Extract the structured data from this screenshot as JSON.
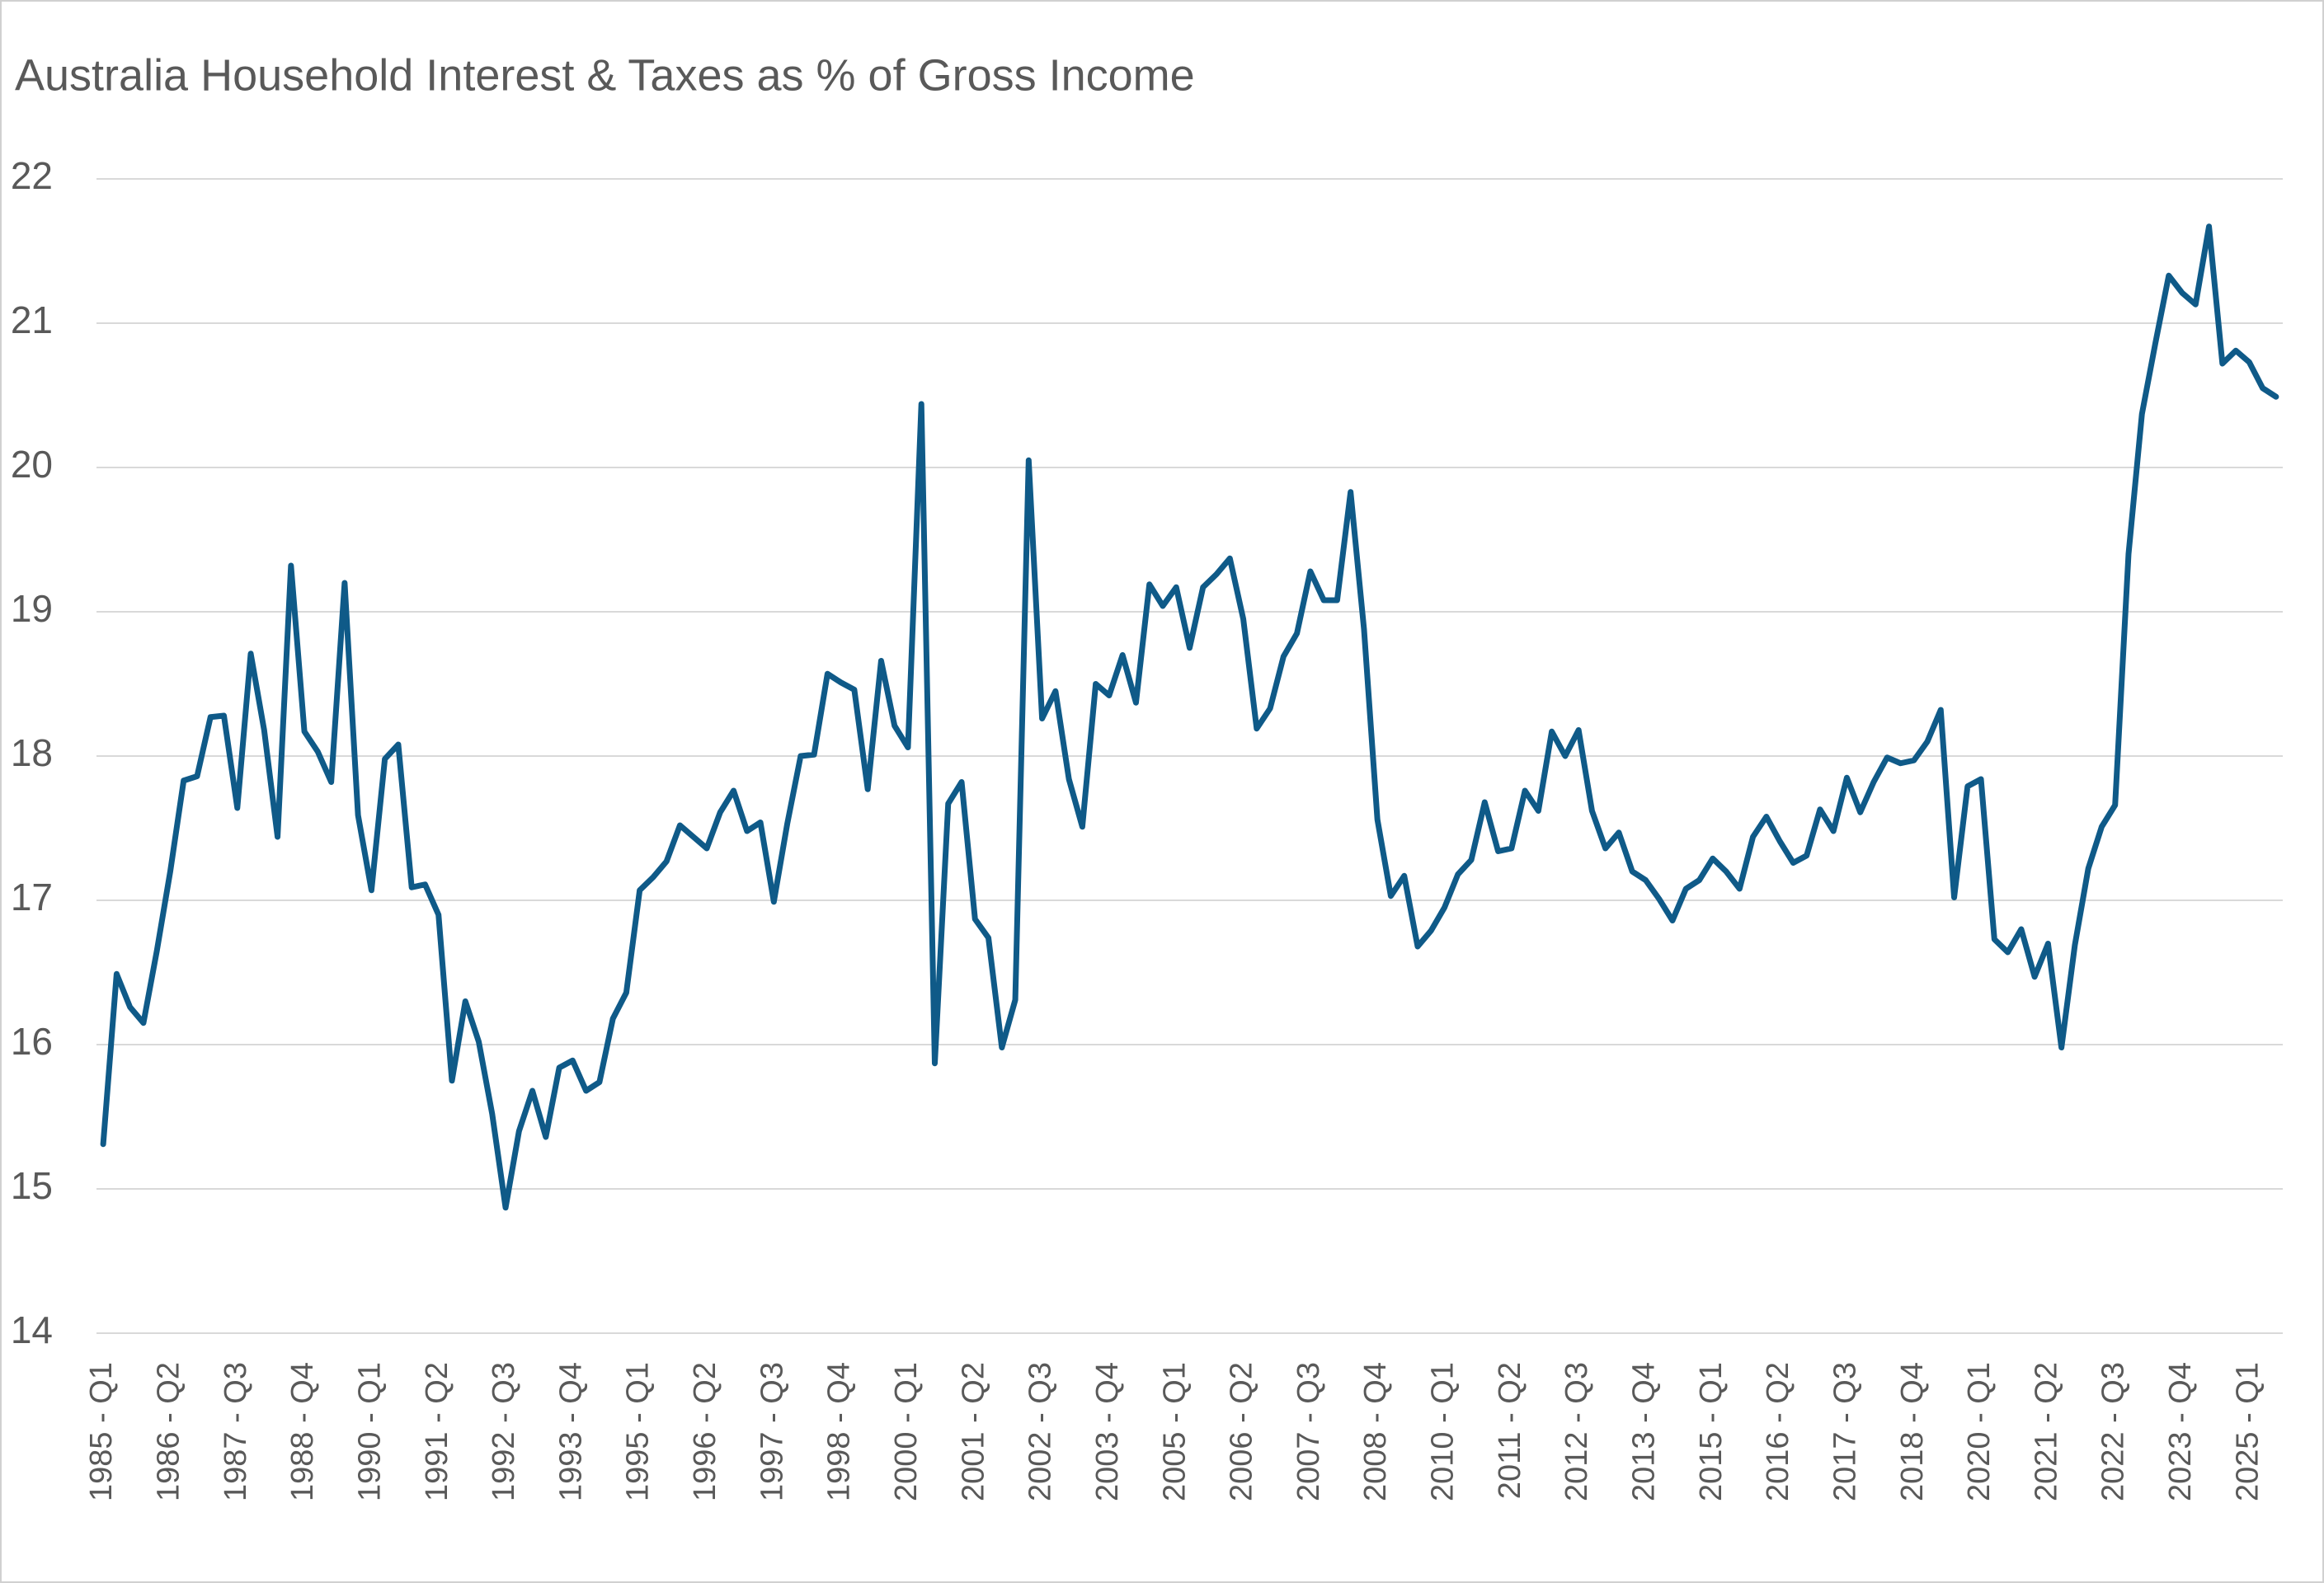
{
  "chart_data": {
    "type": "line",
    "title": "Australia Household Interest & Taxes as % of Gross Income",
    "categories": [
      "1985 - Q1",
      null,
      null,
      null,
      null,
      "1986 - Q2",
      null,
      null,
      null,
      null,
      "1987 - Q3",
      null,
      null,
      null,
      null,
      "1988 - Q4",
      null,
      null,
      null,
      null,
      "1990 - Q1",
      null,
      null,
      null,
      null,
      "1991 - Q2",
      null,
      null,
      null,
      null,
      "1992 - Q3",
      null,
      null,
      null,
      null,
      "1993 - Q4",
      null,
      null,
      null,
      null,
      "1995 - Q1",
      null,
      null,
      null,
      null,
      "1996 - Q2",
      null,
      null,
      null,
      null,
      "1997 - Q3",
      null,
      null,
      null,
      null,
      "1998 - Q4",
      null,
      null,
      null,
      null,
      "2000 - Q1",
      null,
      null,
      null,
      null,
      "2001 - Q2",
      null,
      null,
      null,
      null,
      "2002 - Q3",
      null,
      null,
      null,
      null,
      "2003 - Q4",
      null,
      null,
      null,
      null,
      "2005 - Q1",
      null,
      null,
      null,
      null,
      "2006 - Q2",
      null,
      null,
      null,
      null,
      "2007 - Q3",
      null,
      null,
      null,
      null,
      "2008 - Q4",
      null,
      null,
      null,
      null,
      "2010 - Q1",
      null,
      null,
      null,
      null,
      "2011 - Q2",
      null,
      null,
      null,
      null,
      "2012 - Q3",
      null,
      null,
      null,
      null,
      "2013 - Q4",
      null,
      null,
      null,
      null,
      "2015 - Q1",
      null,
      null,
      null,
      null,
      "2016 - Q2",
      null,
      null,
      null,
      null,
      "2017 - Q3",
      null,
      null,
      null,
      null,
      "2018 - Q4",
      null,
      null,
      null,
      null,
      "2020 - Q1",
      null,
      null,
      null,
      null,
      "2021 - Q2",
      null,
      null,
      null,
      null,
      "2022 - Q3",
      null,
      null,
      null,
      null,
      "2023 - Q4",
      null,
      null,
      null,
      null,
      "2025 - Q1",
      null,
      null
    ],
    "values": [
      15.31,
      16.49,
      16.26,
      16.15,
      16.65,
      17.2,
      17.83,
      17.86,
      18.27,
      18.28,
      17.64,
      18.71,
      18.18,
      17.44,
      19.32,
      18.17,
      18.03,
      17.82,
      19.2,
      17.59,
      17.07,
      17.98,
      18.08,
      17.09,
      17.11,
      16.9,
      15.75,
      16.3,
      16.02,
      15.52,
      14.87,
      15.4,
      15.68,
      15.36,
      15.84,
      15.89,
      15.68,
      15.74,
      16.18,
      16.36,
      17.07,
      17.16,
      17.27,
      17.52,
      17.44,
      17.36,
      17.61,
      17.76,
      17.48,
      17.54,
      16.99,
      17.53,
      18.0,
      18.01,
      18.57,
      18.51,
      18.46,
      17.77,
      18.66,
      18.21,
      18.06,
      20.44,
      15.87,
      17.67,
      17.82,
      16.87,
      16.74,
      15.98,
      16.31,
      20.05,
      18.26,
      18.45,
      17.84,
      17.51,
      18.5,
      18.42,
      18.7,
      18.37,
      19.19,
      19.04,
      19.17,
      18.75,
      19.17,
      19.26,
      19.37,
      18.95,
      18.19,
      18.33,
      18.69,
      18.85,
      19.28,
      19.08,
      19.08,
      19.83,
      18.88,
      17.56,
      17.03,
      17.17,
      16.68,
      16.79,
      16.95,
      17.18,
      17.28,
      17.68,
      17.34,
      17.36,
      17.76,
      17.62,
      18.17,
      18.0,
      18.18,
      17.62,
      17.36,
      17.47,
      17.2,
      17.14,
      17.01,
      16.86,
      17.08,
      17.14,
      17.29,
      17.2,
      17.08,
      17.44,
      17.58,
      17.41,
      17.26,
      17.31,
      17.63,
      17.48,
      17.85,
      17.61,
      17.82,
      17.99,
      17.95,
      17.97,
      18.1,
      18.32,
      17.02,
      17.79,
      17.84,
      16.73,
      16.64,
      16.8,
      16.47,
      16.7,
      15.98,
      16.69,
      17.22,
      17.51,
      17.66,
      19.4,
      20.37,
      20.86,
      21.33,
      21.21,
      21.13,
      21.67,
      20.72,
      20.81,
      20.73,
      20.55,
      20.49
    ],
    "color": "#0f5a88",
    "ylim": [
      14,
      22
    ],
    "yticks": [
      14,
      15,
      16,
      17,
      18,
      19,
      20,
      21,
      22
    ],
    "grid": true
  }
}
